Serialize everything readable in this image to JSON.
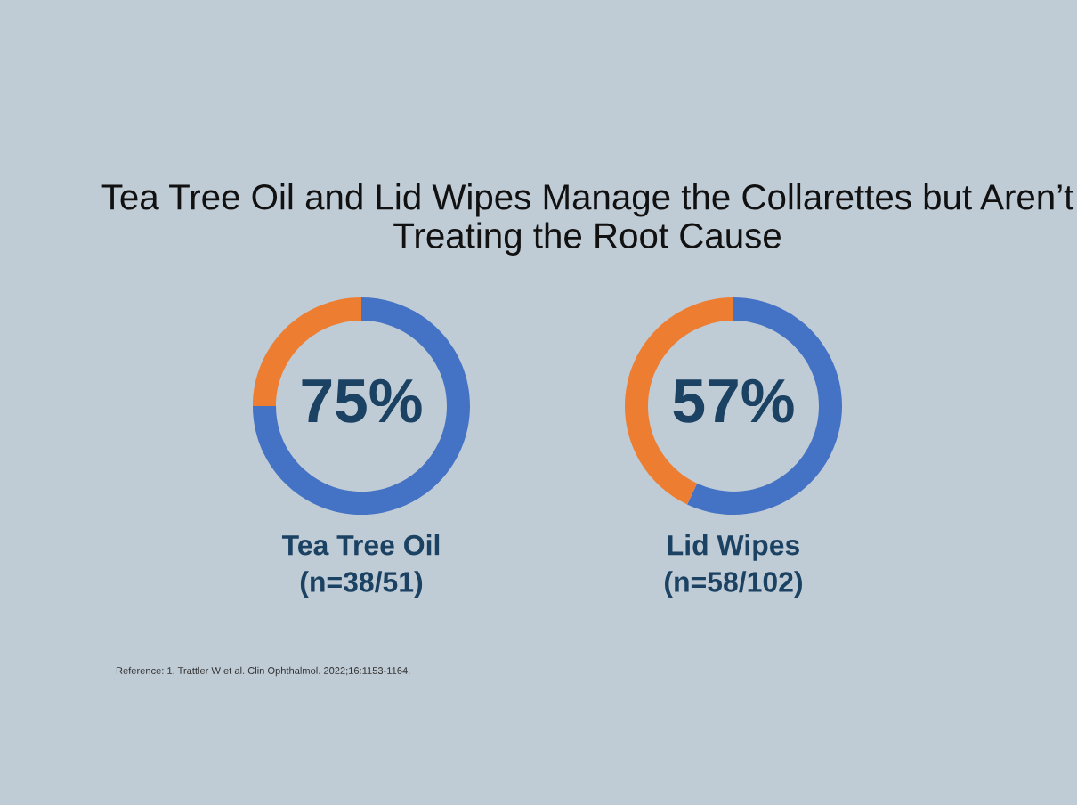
{
  "chart_data": [
    {
      "type": "donut",
      "title": "Tea Tree Oil and Lid Wipes Manage the Collarettes but Aren’t Treating the Root Cause",
      "categories": [
        null,
        null
      ],
      "values": [
        75,
        25
      ],
      "colors": [
        "#4472c4",
        "#ed7d31"
      ],
      "value_labels": [
        "75%",
        null
      ],
      "xlabel": "Tea Tree Oil\n(n=38/51)",
      "annotations": [
        "Reference: 1. Trattler W et al. Clin Ophthalmol. 2022;16:1153-1164."
      ]
    },
    {
      "type": "donut",
      "categories": [
        null,
        null
      ],
      "values": [
        57,
        43
      ],
      "colors": [
        "#4472c4",
        "#ed7d31"
      ],
      "value_labels": [
        "57%",
        null
      ],
      "xlabel": "Lid Wipes\n(n=58/102)"
    }
  ]
}
